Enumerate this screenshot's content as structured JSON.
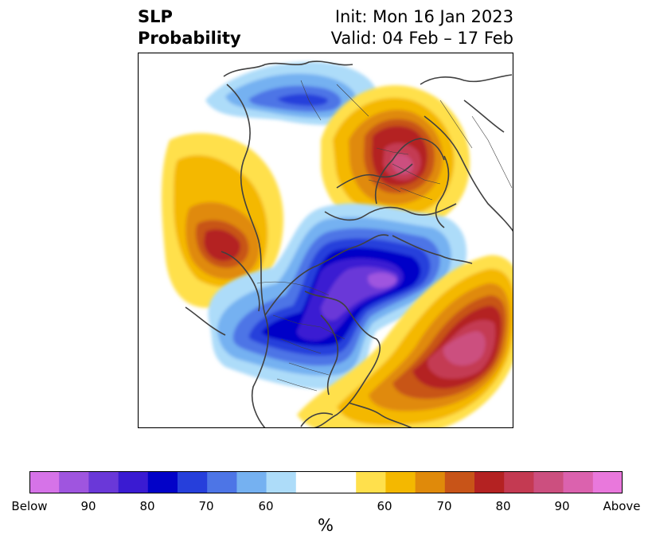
{
  "title": {
    "left_line1": "SLP",
    "left_line2": "Probability",
    "right_line1": "Init: Mon 16 Jan 2023",
    "right_line2": "Valid: 04 Feb – 17 Feb"
  },
  "colorbar": {
    "below_colors": [
      "#d673e8",
      "#9f55df",
      "#6a38d8",
      "#3a1bd2",
      "#0202c8",
      "#263fdb",
      "#4d75e6",
      "#75b1f1",
      "#addcf9"
    ],
    "neutral_color": "#ffffff",
    "above_colors": [
      "#ffe04c",
      "#f4b800",
      "#e08a0a",
      "#c85418",
      "#b42222",
      "#c43a52",
      "#cc4f7f",
      "#db62ae",
      "#e978dc"
    ],
    "ticks": [
      "Below",
      "90",
      "80",
      "70",
      "60",
      "60",
      "70",
      "80",
      "90",
      "Above"
    ],
    "unit_label": "%"
  },
  "map": {
    "projection": "north-polar-stereographic",
    "features": [
      {
        "name": "scandinavia-russia-above",
        "category": "above",
        "peak": "80-90%"
      },
      {
        "name": "east-pacific-above",
        "category": "above",
        "peak": "70-80%"
      },
      {
        "name": "north-atlantic-above",
        "category": "above",
        "peak": "80-90%"
      },
      {
        "name": "canada-greenland-below",
        "category": "below",
        "peak": "80-90%"
      },
      {
        "name": "siberia-below",
        "category": "below",
        "peak": "60-70%"
      }
    ]
  }
}
